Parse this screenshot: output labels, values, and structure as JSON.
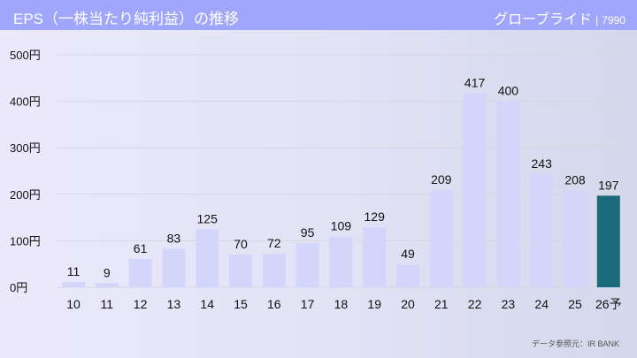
{
  "header": {
    "title": "EPS（一株当たり純利益）の推移",
    "company": "グローブライド",
    "separator": "|",
    "code": "7990"
  },
  "source": "データ参照元：IR BANK",
  "colors": {
    "bar": "#d4d5fb",
    "forecast_bar": "#1a6a7c",
    "header": "#a0a6fc",
    "grid": "#d6d6e0"
  },
  "chart_data": {
    "type": "bar",
    "title": "EPS（一株当たり純利益）の推移",
    "xlabel": "",
    "ylabel": "",
    "ylim": [
      0,
      500
    ],
    "yticks": [
      0,
      100,
      200,
      300,
      400,
      500
    ],
    "ytick_labels": [
      "0円",
      "100円",
      "200円",
      "300円",
      "400円",
      "500円"
    ],
    "grid": true,
    "categories": [
      "10",
      "11",
      "12",
      "13",
      "14",
      "15",
      "16",
      "17",
      "18",
      "19",
      "20",
      "21",
      "22",
      "23",
      "24",
      "25",
      "26予"
    ],
    "values": [
      11,
      9,
      61,
      83,
      125,
      70,
      72,
      95,
      109,
      129,
      49,
      209,
      417,
      400,
      243,
      208,
      197
    ],
    "forecast_index": 16
  }
}
